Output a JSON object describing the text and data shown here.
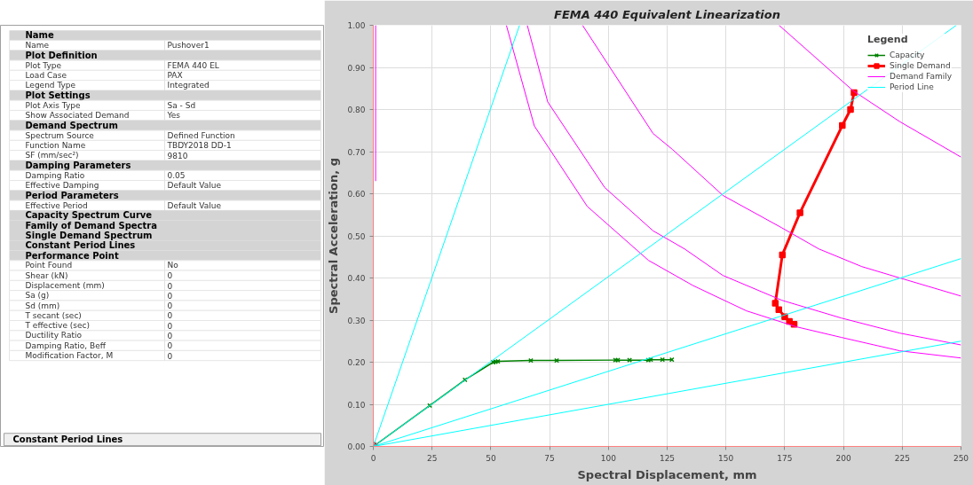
{
  "chart_data": [
    {
      "type": "other",
      "categories": [
        "Name",
        "Name",
        "Plot Definition",
        "Plot Type",
        "Load Case",
        "Legend Type",
        "Plot Settings",
        "Plot Axis Type",
        "Show Associated Demand",
        "Demand Spectrum",
        "Spectrum Source",
        "Function Name",
        "SF (mm/sec²)",
        "Damping Parameters",
        "Damping Ratio",
        "Effective Damping",
        "Period Parameters",
        "Effective Period",
        "Capacity Spectrum Curve",
        "Family of Demand Spectra",
        "Single Demand Spectrum",
        "Constant Period Lines",
        "Performance Point",
        "Point Found",
        "Shear (kN)",
        "Displacement (mm)",
        "Sa (g)",
        "Sd (mm)",
        "T secant (sec)",
        "T effective (sec)",
        "Ductility Ratio",
        "Damping Ratio, Beff",
        "Modification Factor, M"
      ],
      "value_labels": [
        null,
        "Pushover1",
        null,
        "FEMA 440 EL",
        "PAX",
        "Integrated",
        null,
        "Sa - Sd",
        "Yes",
        null,
        "Defined Function",
        "TBDY2018 DD-1",
        "9810",
        null,
        "0.05",
        "Default Value",
        null,
        "Default Value",
        null,
        null,
        null,
        null,
        null,
        "No",
        "0",
        "0",
        "0",
        "0",
        "0",
        "0",
        "0",
        "0",
        "0"
      ],
      "annotations": [
        "Constant Period Lines"
      ]
    },
    {
      "type": "line",
      "title": "FEMA 440 Equivalent Linearization",
      "xlabel": "Spectral Displacement, mm",
      "ylabel": "Spectral Acceleration, g",
      "legend_title": "Legend",
      "xlim": [
        0,
        250
      ],
      "ylim": [
        0,
        1.0
      ],
      "xticks": [
        0,
        25,
        50,
        75,
        100,
        125,
        150,
        175,
        200,
        225,
        250
      ],
      "yticks": [
        {
          "value": 0,
          "label": "0.00"
        },
        {
          "value": 0.1,
          "label": "0.10"
        },
        {
          "value": 0.2,
          "label": "0.20"
        },
        {
          "value": 0.3,
          "label": "0.30"
        },
        {
          "value": 0.4,
          "label": "0.40"
        },
        {
          "value": 0.5,
          "label": "0.50"
        },
        {
          "value": 0.6,
          "label": "0.60"
        },
        {
          "value": 0.7,
          "label": "0.70"
        },
        {
          "value": 0.8,
          "label": "0.80"
        },
        {
          "value": 0.9,
          "label": "0.90"
        },
        {
          "value": 1.0,
          "label": "1.00"
        }
      ],
      "grid": true,
      "legend": "top right",
      "series": [
        {
          "name": "Capacity",
          "color": "#008000",
          "marker": "cross",
          "x": [
            0,
            24,
            39,
            51,
            52,
            53,
            67,
            78,
            103,
            104,
            109,
            117,
            118,
            123,
            127
          ],
          "values": [
            0,
            0.097,
            0.158,
            0.2,
            0.201,
            0.202,
            0.204,
            0.204,
            0.205,
            0.205,
            0.205,
            0.205,
            0.206,
            0.206,
            0.206
          ]
        },
        {
          "name": "Single Demand",
          "color": "#ff0000",
          "marker": "square",
          "x": [
            204.5,
            203,
            199.5,
            181.5,
            174,
            171,
            172.5,
            175,
            177,
            179
          ],
          "values": [
            0.84,
            0.8,
            0.762,
            0.555,
            0.455,
            0.34,
            0.325,
            0.308,
            0.297,
            0.29
          ]
        },
        {
          "color": "#ff0000",
          "type": "scatter",
          "marker": "circle",
          "x": [
            0
          ],
          "values": [
            0
          ]
        },
        {
          "name": "Demand Family",
          "color": "#ff00ff",
          "marker": "none",
          "x": [
            56.6,
            68.5,
            91,
            117,
            136,
            158.7,
            180,
            199,
            224,
            250
          ],
          "values": [
            1.0,
            0.761,
            0.57,
            0.442,
            0.382,
            0.322,
            0.284,
            0.259,
            0.227,
            0.21
          ]
        },
        {
          "color": "#ff00ff",
          "marker": "none",
          "x": [
            65.5,
            74.2,
            98.4,
            119,
            132.4,
            148.7,
            173.8,
            199,
            224,
            250
          ],
          "values": [
            1.0,
            0.818,
            0.615,
            0.512,
            0.469,
            0.406,
            0.347,
            0.305,
            0.269,
            0.241
          ]
        },
        {
          "color": "#ff00ff",
          "marker": "none",
          "x": [
            89,
            99.5,
            119,
            127.3,
            148.7,
            173.8,
            189.5,
            207.8,
            224,
            250
          ],
          "values": [
            1.0,
            0.91,
            0.743,
            0.705,
            0.596,
            0.519,
            0.469,
            0.427,
            0.4,
            0.357
          ]
        },
        {
          "color": "#ff00ff",
          "marker": "none",
          "x": [
            172.6,
            204,
            224,
            250
          ],
          "values": [
            1.0,
            0.845,
            0.771,
            0.687
          ]
        },
        {
          "color": "#ff00ff",
          "marker": "none",
          "x": [
            1,
            1
          ],
          "values": [
            0.63,
            1.0
          ]
        },
        {
          "name": "Period Line",
          "color": "#00ffff",
          "marker": "none",
          "x": [
            0,
            62.2
          ],
          "values": [
            0,
            1.0
          ]
        },
        {
          "color": "#00ffff",
          "marker": "none",
          "x": [
            0,
            248
          ],
          "values": [
            0,
            1.0
          ]
        },
        {
          "color": "#00ffff",
          "marker": "none",
          "x": [
            0,
            250
          ],
          "values": [
            0,
            0.446
          ]
        },
        {
          "color": "#00ffff",
          "marker": "none",
          "x": [
            0,
            250
          ],
          "values": [
            0,
            0.25
          ]
        }
      ]
    }
  ]
}
